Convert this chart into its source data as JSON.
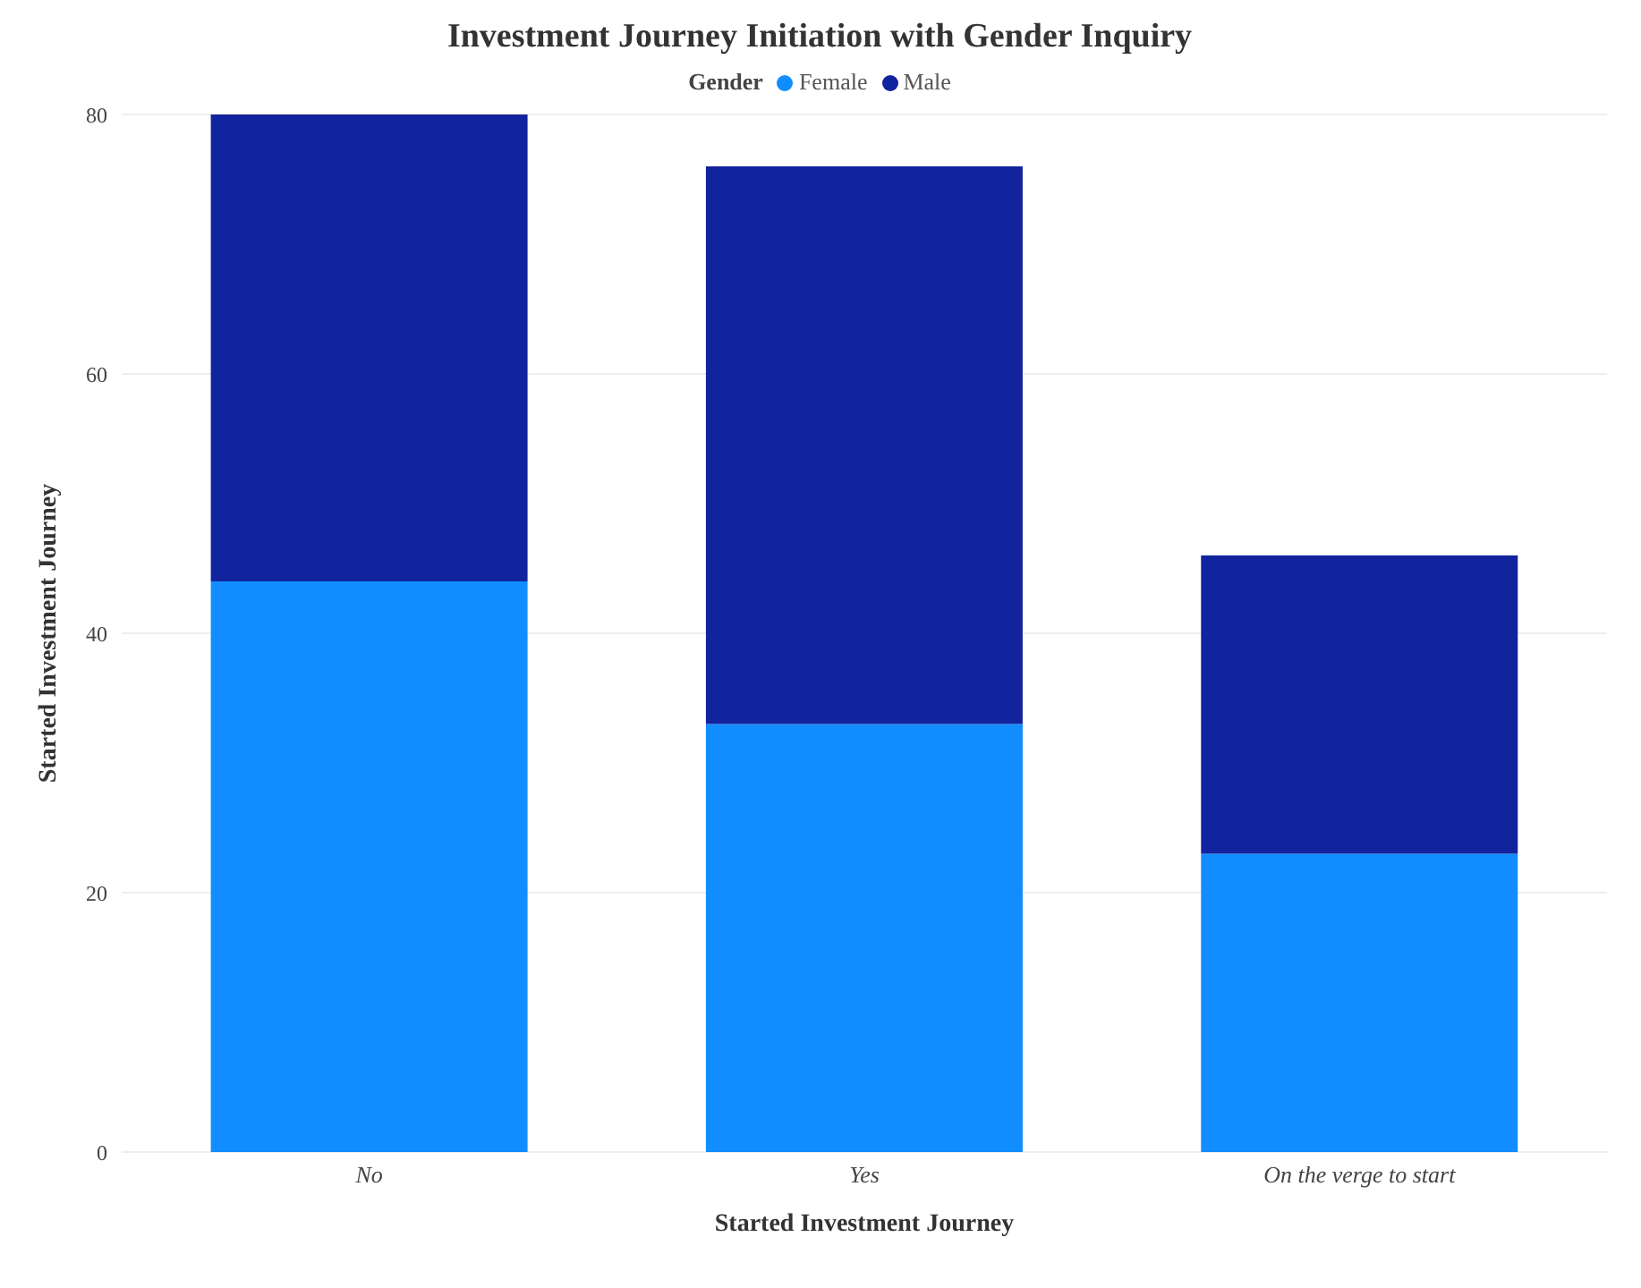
{
  "chart_data": {
    "type": "bar",
    "title": "Investment Journey Initiation with Gender Inquiry",
    "xlabel": "Started Investment Journey",
    "ylabel": "Started Investment Journey",
    "legend_title": "Gender",
    "legend": "top",
    "stacked": true,
    "grid": "y",
    "categories": [
      "No",
      "Yes",
      "On the verge to start"
    ],
    "series": [
      {
        "name": "Female",
        "color": "#118dff",
        "values": [
          44,
          33,
          23
        ]
      },
      {
        "name": "Male",
        "color": "#12239e",
        "values": [
          36,
          43,
          23
        ]
      }
    ],
    "ylim": [
      0,
      80
    ],
    "yticks": [
      0,
      20,
      40,
      60,
      80
    ]
  }
}
